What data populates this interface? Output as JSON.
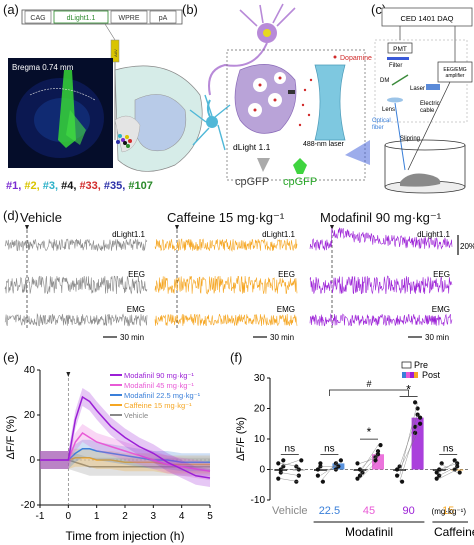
{
  "panels": {
    "a": {
      "letter": "(a)",
      "construct": [
        "CAG",
        "dLight1.1",
        "WPRE",
        "pA"
      ],
      "fiber": "AAV",
      "bregma": "Bregma 0.74 mm",
      "mice": [
        {
          "label": "#1,",
          "color": "#7a2bd1"
        },
        {
          "label": "#2,",
          "color": "#d9c400"
        },
        {
          "label": "#3,",
          "color": "#2bb0c8"
        },
        {
          "label": "#4,",
          "color": "#111111"
        },
        {
          "label": "#33,",
          "color": "#d12a2a"
        },
        {
          "label": "#35,",
          "color": "#2a2fa8"
        },
        {
          "label": "#107",
          "color": "#2a8a2a"
        }
      ]
    },
    "b": {
      "letter": "(b)",
      "dopamine": "Dopamine",
      "sensor": "dLight 1.1",
      "laser": "488-nm laser",
      "cpgfp_dim": "cpGFP",
      "cpgfp_bright": "cpGFP"
    },
    "c": {
      "letter": "(c)",
      "daq": "CED 1401 DAQ",
      "pmt": "PMT",
      "filter": "Filter",
      "dm": "DM",
      "laser": "Laser",
      "eeg_amp": "EEG/EMG\namplifier",
      "lens": "Lens",
      "cable": "Electric\ncable",
      "fiber": "Optical\nfiber",
      "slipring": "Slipring"
    },
    "d": {
      "letter": "(d)",
      "groups": [
        {
          "title": "Vehicle",
          "color": "#888888"
        },
        {
          "title": "Caffeine 15 mg·kg⁻¹",
          "color": "#f5a623"
        },
        {
          "title": "Modafinil 90 mg·kg⁻¹",
          "color": "#9b1fd6"
        }
      ],
      "rows": [
        "dLight1.1",
        "EEG",
        "EMG"
      ],
      "scale_time": "30 min",
      "scale_amp": "20%"
    },
    "e": {
      "letter": "(e)",
      "ylabel": "ΔF/F (%)",
      "xlabel": "Time from injection (h)"
    },
    "f": {
      "letter": "(f)",
      "ylabel": "ΔF/F (%)",
      "legend_pre": "Pre",
      "legend_post": "Post",
      "unit": "(mg·kg⁻¹)",
      "group_modafinil": "Modafinil",
      "group_caffeine": "Caffeine",
      "hash": "#"
    }
  },
  "chart_data": [
    {
      "type": "line",
      "panel": "e",
      "xlabel": "Time from injection (h)",
      "ylabel": "ΔF/F (%)",
      "xlim": [
        -1,
        5
      ],
      "ylim": [
        -20,
        40
      ],
      "xticks": [
        -1,
        0,
        1,
        2,
        3,
        4,
        5
      ],
      "yticks": [
        -20,
        0,
        20,
        40
      ],
      "injection_at": 0,
      "x": [
        -1,
        -0.5,
        0,
        0.25,
        0.5,
        0.75,
        1,
        1.5,
        2,
        2.5,
        3,
        3.5,
        4,
        4.5,
        5
      ],
      "series": [
        {
          "name": "Modafinil 90 mg·kg⁻¹",
          "color": "#9b1fd6",
          "values": [
            0,
            0,
            0,
            18,
            28,
            26,
            22,
            15,
            10,
            6,
            3,
            -1,
            -4,
            -7,
            -8
          ]
        },
        {
          "name": "Modafinil 45 mg·kg⁻¹",
          "color": "#e85ad6",
          "values": [
            0,
            0,
            0,
            8,
            12,
            10,
            8,
            6,
            4,
            2,
            0,
            -2,
            -3,
            -4,
            -5
          ]
        },
        {
          "name": "Modafinil 22.5 mg·kg⁻¹",
          "color": "#3a7fd9",
          "values": [
            0,
            0,
            0,
            3,
            5,
            5,
            4,
            3,
            2,
            1,
            0,
            0,
            -1,
            -1,
            -1
          ]
        },
        {
          "name": "Caffeine 15 mg·kg⁻¹",
          "color": "#f5a623",
          "values": [
            0,
            0,
            0,
            1,
            1,
            1,
            0,
            0,
            -1,
            -1,
            -1,
            -2,
            -2,
            -2,
            -2
          ]
        },
        {
          "name": "Vehicle",
          "color": "#888888",
          "values": [
            0,
            0,
            0,
            -1,
            -2,
            -3,
            -3,
            -3,
            -3,
            -3,
            -3,
            -3,
            -3,
            -3,
            -3
          ]
        }
      ]
    },
    {
      "type": "bar",
      "panel": "f",
      "ylabel": "ΔF/F (%)",
      "ylim": [
        -10,
        30
      ],
      "yticks": [
        -10,
        0,
        10,
        20,
        30
      ],
      "categories": [
        "Vehicle",
        "22.5",
        "45",
        "90",
        "15"
      ],
      "category_colors": [
        "#888888",
        "#3a7fd9",
        "#e85ad6",
        "#9b1fd6",
        "#f5a623"
      ],
      "series": [
        {
          "name": "Pre",
          "values": [
            0,
            0,
            0,
            0,
            0
          ]
        },
        {
          "name": "Post",
          "values": [
            0,
            2,
            5,
            17,
            0
          ]
        }
      ],
      "significance": [
        "ns",
        "ns",
        "*",
        "*",
        "ns"
      ],
      "points_pre": [
        [
          2,
          -1,
          1,
          -3,
          0,
          3
        ],
        [
          -2,
          1,
          -4,
          0,
          2
        ],
        [
          -3,
          0,
          -1,
          2,
          -2
        ],
        [
          -2,
          1,
          -4,
          0
        ],
        [
          -3,
          0,
          2,
          -1,
          -2
        ]
      ],
      "points_post": [
        [
          1,
          -2,
          3,
          -4,
          0
        ],
        [
          2,
          1,
          3,
          0
        ],
        [
          3,
          6,
          8,
          4,
          5
        ],
        [
          22,
          18,
          15,
          12,
          20,
          17,
          14
        ],
        [
          0,
          2,
          -1,
          3,
          1
        ]
      ]
    }
  ]
}
